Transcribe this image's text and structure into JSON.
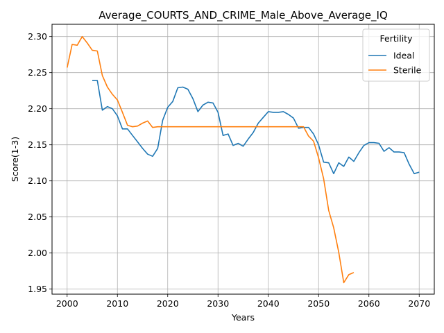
{
  "chart_data": {
    "type": "line",
    "title": "Average_COURTS_AND_CRIME_Male_Above_Average_IQ",
    "xlabel": "Years",
    "ylabel": "Score(1-3)",
    "xlim": [
      1997,
      2073
    ],
    "ylim": [
      1.943,
      2.317
    ],
    "x_ticks": [
      2000,
      2010,
      2020,
      2030,
      2040,
      2050,
      2060,
      2070
    ],
    "y_ticks": [
      1.95,
      2.0,
      2.05,
      2.1,
      2.15,
      2.2,
      2.25,
      2.3
    ],
    "grid": true,
    "legend": {
      "title": "Fertility",
      "placement": "top-right"
    },
    "series": [
      {
        "name": "Ideal",
        "color": "#1f77b4",
        "points": [
          [
            2005,
            2.239
          ],
          [
            2006,
            2.239
          ],
          [
            2007,
            2.198
          ],
          [
            2008,
            2.203
          ],
          [
            2009,
            2.2
          ],
          [
            2010,
            2.19
          ],
          [
            2011,
            2.172
          ],
          [
            2012,
            2.172
          ],
          [
            2013,
            2.163
          ],
          [
            2014,
            2.154
          ],
          [
            2015,
            2.145
          ],
          [
            2016,
            2.137
          ],
          [
            2017,
            2.134
          ],
          [
            2018,
            2.145
          ],
          [
            2019,
            2.184
          ],
          [
            2020,
            2.202
          ],
          [
            2021,
            2.21
          ],
          [
            2022,
            2.229
          ],
          [
            2023,
            2.23
          ],
          [
            2024,
            2.227
          ],
          [
            2025,
            2.214
          ],
          [
            2026,
            2.196
          ],
          [
            2027,
            2.205
          ],
          [
            2028,
            2.209
          ],
          [
            2029,
            2.208
          ],
          [
            2030,
            2.195
          ],
          [
            2031,
            2.163
          ],
          [
            2032,
            2.165
          ],
          [
            2033,
            2.149
          ],
          [
            2034,
            2.152
          ],
          [
            2035,
            2.148
          ],
          [
            2036,
            2.158
          ],
          [
            2037,
            2.167
          ],
          [
            2038,
            2.18
          ],
          [
            2039,
            2.188
          ],
          [
            2040,
            2.196
          ],
          [
            2041,
            2.195
          ],
          [
            2042,
            2.195
          ],
          [
            2043,
            2.196
          ],
          [
            2044,
            2.192
          ],
          [
            2045,
            2.187
          ],
          [
            2046,
            2.173
          ],
          [
            2047,
            2.174
          ],
          [
            2048,
            2.174
          ],
          [
            2049,
            2.165
          ],
          [
            2050,
            2.15
          ],
          [
            2051,
            2.126
          ],
          [
            2052,
            2.125
          ],
          [
            2053,
            2.11
          ],
          [
            2054,
            2.125
          ],
          [
            2055,
            2.12
          ],
          [
            2056,
            2.133
          ],
          [
            2057,
            2.127
          ],
          [
            2058,
            2.139
          ],
          [
            2059,
            2.149
          ],
          [
            2060,
            2.153
          ],
          [
            2061,
            2.153
          ],
          [
            2062,
            2.152
          ],
          [
            2063,
            2.141
          ],
          [
            2064,
            2.146
          ],
          [
            2065,
            2.14
          ],
          [
            2066,
            2.14
          ],
          [
            2067,
            2.139
          ],
          [
            2068,
            2.123
          ],
          [
            2069,
            2.11
          ],
          [
            2070,
            2.112
          ]
        ]
      },
      {
        "name": "Sterile",
        "color": "#ff7f0e",
        "points": [
          [
            2000,
            2.257
          ],
          [
            2001,
            2.289
          ],
          [
            2002,
            2.288
          ],
          [
            2003,
            2.3
          ],
          [
            2004,
            2.291
          ],
          [
            2005,
            2.281
          ],
          [
            2006,
            2.28
          ],
          [
            2007,
            2.246
          ],
          [
            2008,
            2.23
          ],
          [
            2009,
            2.22
          ],
          [
            2010,
            2.212
          ],
          [
            2011,
            2.195
          ],
          [
            2012,
            2.177
          ],
          [
            2013,
            2.175
          ],
          [
            2014,
            2.176
          ],
          [
            2015,
            2.18
          ],
          [
            2016,
            2.183
          ],
          [
            2017,
            2.174
          ],
          [
            2018,
            2.175
          ],
          [
            2019,
            2.175
          ],
          [
            2020,
            2.175
          ],
          [
            2025,
            2.175
          ],
          [
            2030,
            2.175
          ],
          [
            2035,
            2.175
          ],
          [
            2040,
            2.175
          ],
          [
            2045,
            2.175
          ],
          [
            2046,
            2.175
          ],
          [
            2047,
            2.175
          ],
          [
            2048,
            2.162
          ],
          [
            2049,
            2.155
          ],
          [
            2050,
            2.132
          ],
          [
            2051,
            2.103
          ],
          [
            2052,
            2.059
          ],
          [
            2053,
            2.035
          ],
          [
            2054,
            2.001
          ],
          [
            2055,
            1.959
          ],
          [
            2056,
            1.97
          ],
          [
            2057,
            1.973
          ]
        ]
      }
    ]
  }
}
